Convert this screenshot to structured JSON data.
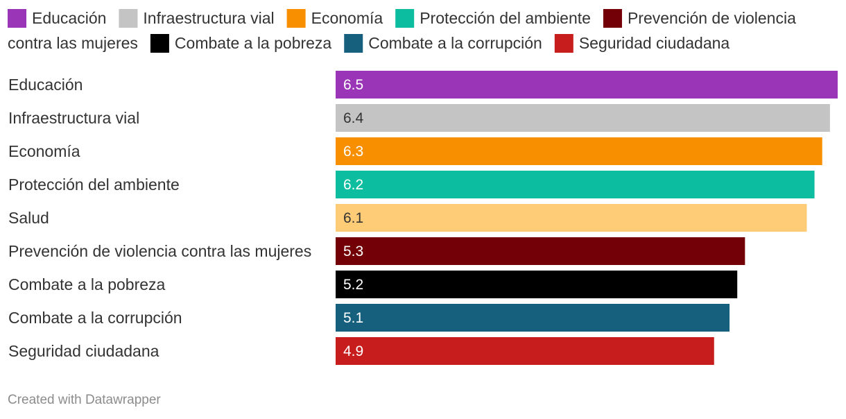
{
  "chart_data": {
    "type": "bar",
    "orientation": "horizontal",
    "categories": [
      "Educación",
      "Infraestructura vial",
      "Economía",
      "Protección del ambiente",
      "Salud",
      "Prevención de violencia contra las mujeres",
      "Combate a la pobreza",
      "Combate a la corrupción",
      "Seguridad ciudadana"
    ],
    "values": [
      6.5,
      6.4,
      6.3,
      6.2,
      6.1,
      5.3,
      5.2,
      5.1,
      4.9
    ],
    "value_labels": [
      "6.5",
      "6.4",
      "6.3",
      "6.2",
      "6.1",
      "5.3",
      "5.2",
      "5.1",
      "4.9"
    ],
    "colors": [
      "#9b35b8",
      "#c4c4c4",
      "#f78f00",
      "#0dbd9f",
      "#fecb76",
      "#720006",
      "#000000",
      "#16607e",
      "#c71e1d"
    ],
    "label_colors": [
      "#ffffff",
      "#333333",
      "#ffffff",
      "#ffffff",
      "#333333",
      "#ffffff",
      "#ffffff",
      "#ffffff",
      "#ffffff"
    ],
    "xlim": [
      0,
      6.5
    ],
    "legend": {
      "placement": "top",
      "items": [
        {
          "label": "Educación",
          "color": "#9b35b8"
        },
        {
          "label": "Infraestructura vial",
          "color": "#c4c4c4"
        },
        {
          "label": "Economía",
          "color": "#f78f00"
        },
        {
          "label": "Protección del ambiente",
          "color": "#0dbd9f"
        },
        {
          "label": "Prevención de violencia contra las mujeres",
          "color": "#720006"
        },
        {
          "label": "Combate a la pobreza",
          "color": "#000000"
        },
        {
          "label": "Combate a la corrupción",
          "color": "#16607e"
        },
        {
          "label": "Seguridad ciudadana",
          "color": "#c71e1d"
        }
      ]
    }
  },
  "footer": {
    "credit": "Created with Datawrapper"
  }
}
